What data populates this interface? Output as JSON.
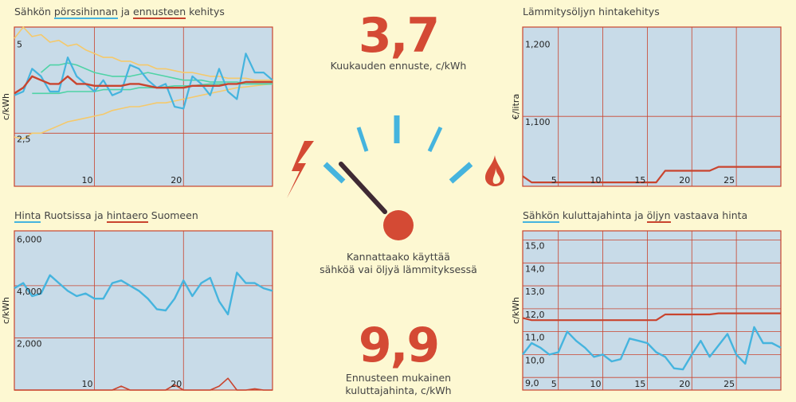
{
  "title_tl": {
    "prefix": "Sähkön ",
    "u1": "pörssihinnan",
    "mid": " ja ",
    "u2": "ennusteen",
    "suffix": " kehitys"
  },
  "title_tr": "Lämmitysöljyn hintakehitys",
  "title_bl": {
    "u1": "Hinta",
    "mid": " Ruotsissa ja ",
    "u2": "hintaero",
    "suffix": " Suomeen"
  },
  "title_br": {
    "u1": "Sähkön",
    "mid": " kuluttajahinta ja ",
    "u2": "öljyn",
    "suffix": " vastaava hinta"
  },
  "center": {
    "forecast_value": "3,7",
    "forecast_label": "Kuukauden ennuste, c/kWh",
    "question_line1": "Kannattaako käyttää",
    "question_line2": "sähköä vai öljyä lämmityksessä",
    "consumer_value": "9,9",
    "consumer_line1": "Ennusteen mukainen",
    "consumer_line2": "kuluttajahinta, c/kWh"
  },
  "icons": {
    "left": "lightning-icon",
    "right": "flame-drop-icon",
    "gauge": "gauge-icon"
  },
  "colors": {
    "blue": "#45b4de",
    "red": "#c9442e",
    "yellow": "#f5c96b",
    "green": "#4fd3a6",
    "plot_bg": "#c8dbe8",
    "grid": "#c9442e",
    "bg": "#fdf8d2"
  },
  "chart_data": [
    {
      "id": "tl",
      "type": "line",
      "ylabel": "c/kWh",
      "xlim": [
        1,
        30
      ],
      "ylim": [
        1.1,
        5.3
      ],
      "xticks": [
        10,
        20
      ],
      "yticks": [
        {
          "v": 5,
          "label": "5"
        },
        {
          "v": 2.5,
          "label": "2,5"
        }
      ],
      "series": [
        {
          "color": "yellow",
          "width": 1.6,
          "values": [
            2.4,
            2.35,
            2.5,
            2.5,
            2.6,
            2.7,
            2.8,
            2.85,
            2.9,
            2.95,
            3.0,
            3.1,
            3.15,
            3.2,
            3.2,
            3.25,
            3.3,
            3.3,
            3.35,
            3.4,
            3.45,
            3.5,
            3.55,
            3.6,
            3.65,
            3.7,
            3.72,
            3.75,
            3.78,
            3.8
          ]
        },
        {
          "color": "yellow",
          "width": 1.6,
          "values": [
            5.0,
            5.3,
            5.05,
            5.1,
            4.9,
            4.95,
            4.8,
            4.85,
            4.7,
            4.6,
            4.5,
            4.5,
            4.4,
            4.4,
            4.3,
            4.3,
            4.2,
            4.2,
            4.15,
            4.1,
            4.1,
            4.05,
            4.0,
            4.0,
            3.95,
            3.95,
            3.95,
            3.9,
            3.9,
            3.9
          ]
        },
        {
          "color": "green",
          "width": 1.6,
          "values": [
            null,
            null,
            3.55,
            3.55,
            3.55,
            3.55,
            3.6,
            3.6,
            3.6,
            3.6,
            3.65,
            3.65,
            3.65,
            3.65,
            3.7,
            3.7,
            3.7,
            3.72,
            3.75,
            3.75,
            3.75,
            3.78,
            3.8,
            3.8,
            3.8,
            3.8,
            3.8,
            3.8,
            3.8,
            3.8
          ]
        },
        {
          "color": "green",
          "width": 1.6,
          "values": [
            null,
            null,
            null,
            4.1,
            4.3,
            4.3,
            4.35,
            4.3,
            4.2,
            4.1,
            4.05,
            4.0,
            4.0,
            4.0,
            4.05,
            4.1,
            4.05,
            4.0,
            3.95,
            3.9,
            3.9,
            3.9,
            3.85,
            3.85,
            3.85,
            3.85,
            3.8,
            3.8,
            3.8,
            3.8
          ]
        },
        {
          "color": "blue",
          "width": 2.2,
          "values": [
            3.5,
            3.6,
            4.2,
            4.0,
            3.6,
            3.6,
            4.5,
            4.0,
            3.8,
            3.6,
            3.9,
            3.5,
            3.6,
            4.3,
            4.2,
            3.9,
            3.7,
            3.8,
            3.2,
            3.15,
            4.0,
            3.8,
            3.5,
            4.2,
            3.6,
            3.4,
            4.6,
            4.1,
            4.1,
            3.9
          ]
        },
        {
          "color": "red",
          "width": 2.4,
          "values": [
            3.55,
            3.7,
            4.0,
            3.9,
            3.8,
            3.8,
            4.0,
            3.8,
            3.8,
            3.75,
            3.75,
            3.75,
            3.75,
            3.8,
            3.8,
            3.75,
            3.7,
            3.7,
            3.7,
            3.7,
            3.75,
            3.75,
            3.75,
            3.75,
            3.8,
            3.8,
            3.85,
            3.85,
            3.85,
            3.85
          ]
        }
      ]
    },
    {
      "id": "tr",
      "type": "line",
      "ylabel": "€/litra",
      "xlim": [
        1,
        30
      ],
      "ylim": [
        1.01,
        1.215
      ],
      "xticks": [
        5,
        10,
        15,
        20,
        25
      ],
      "yticks": [
        {
          "v": 1.2,
          "label": "1,200"
        },
        {
          "v": 1.1,
          "label": "1,100"
        }
      ],
      "series": [
        {
          "color": "red",
          "width": 2.2,
          "values": [
            1.023,
            1.015,
            1.015,
            1.015,
            1.015,
            1.015,
            1.015,
            1.015,
            1.015,
            1.015,
            1.015,
            1.015,
            1.015,
            1.015,
            1.015,
            1.015,
            1.03,
            1.03,
            1.03,
            1.03,
            1.03,
            1.03,
            1.035,
            1.035,
            1.035,
            1.035,
            1.035,
            1.035,
            1.035,
            1.035
          ]
        }
      ]
    },
    {
      "id": "bl",
      "type": "line",
      "ylabel": "c/kWh",
      "xlim": [
        1,
        30
      ],
      "ylim": [
        0,
        6.1
      ],
      "xticks": [
        10,
        20
      ],
      "yticks": [
        {
          "v": 6,
          "label": "6,000"
        },
        {
          "v": 4,
          "label": "4,000"
        },
        {
          "v": 2,
          "label": "2,000"
        }
      ],
      "series": [
        {
          "color": "blue",
          "width": 2.4,
          "values": [
            3.9,
            4.1,
            3.6,
            3.7,
            4.4,
            4.1,
            3.8,
            3.6,
            3.7,
            3.5,
            3.5,
            4.1,
            4.2,
            4.0,
            3.8,
            3.5,
            3.1,
            3.05,
            3.5,
            4.2,
            3.6,
            4.1,
            4.3,
            3.4,
            2.9,
            4.5,
            4.1,
            4.1,
            3.9,
            3.8
          ]
        },
        {
          "color": "red",
          "width": 1.6,
          "values": [
            0,
            0,
            0,
            0,
            0,
            0,
            0,
            0,
            0,
            0,
            0,
            0,
            0.15,
            0,
            0,
            0,
            0,
            0,
            0.2,
            0,
            0,
            0,
            0,
            0.15,
            0.45,
            0,
            0,
            0.05,
            0,
            0
          ]
        }
      ]
    },
    {
      "id": "br",
      "type": "line",
      "ylabel": "c/kWh",
      "xlim": [
        1,
        30
      ],
      "ylim": [
        8.45,
        15.4
      ],
      "xticks": [
        5,
        10,
        15,
        20,
        25
      ],
      "yticks": [
        {
          "v": 15,
          "label": "15,0"
        },
        {
          "v": 14,
          "label": "14,0"
        },
        {
          "v": 13,
          "label": "13,0"
        },
        {
          "v": 12,
          "label": "12,0"
        },
        {
          "v": 11,
          "label": "11,0"
        },
        {
          "v": 10,
          "label": "10,0"
        },
        {
          "v": 9,
          "label": "9,0"
        }
      ],
      "series": [
        {
          "color": "red",
          "width": 2.2,
          "values": [
            11.6,
            11.5,
            11.5,
            11.5,
            11.5,
            11.5,
            11.5,
            11.5,
            11.5,
            11.5,
            11.5,
            11.5,
            11.5,
            11.5,
            11.5,
            11.5,
            11.75,
            11.75,
            11.75,
            11.75,
            11.75,
            11.75,
            11.8,
            11.8,
            11.8,
            11.8,
            11.8,
            11.8,
            11.8,
            11.8
          ]
        },
        {
          "color": "blue",
          "width": 2.4,
          "values": [
            10.0,
            10.5,
            10.3,
            10.0,
            10.1,
            11.0,
            10.6,
            10.3,
            9.9,
            10.0,
            9.7,
            9.8,
            10.7,
            10.6,
            10.5,
            10.1,
            9.9,
            9.4,
            9.35,
            10.0,
            10.6,
            9.9,
            10.4,
            10.9,
            10.0,
            9.6,
            11.2,
            10.5,
            10.5,
            10.3
          ]
        }
      ]
    }
  ]
}
